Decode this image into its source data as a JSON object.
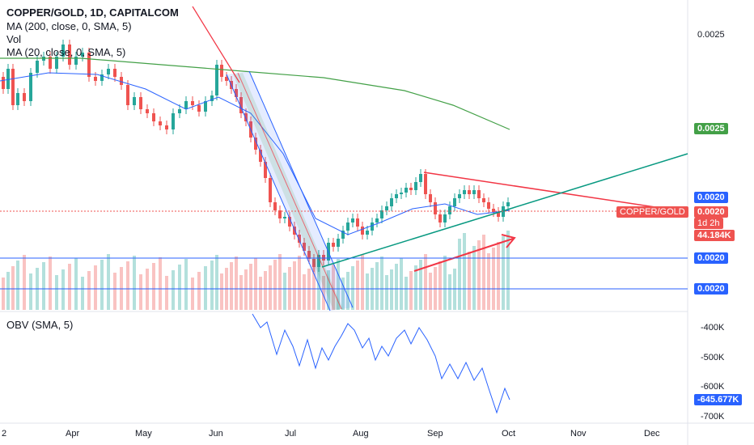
{
  "legend": {
    "title": "COPPER/GOLD, 1D, CAPITALCOM",
    "ma200": "MA (200, close, 0, SMA, 5)",
    "vol": "Vol",
    "ma20": "MA (20, close, 0, SMA, 5)",
    "obv": "OBV (SMA, 5)"
  },
  "price_axis": {
    "top_label": "0.0025",
    "ma200_tag": "0.0025",
    "ma20_tag": "0.0020",
    "symbol_tag": "COPPER/GOLD",
    "last_price": "0.0020",
    "countdown": "1d 2h",
    "volume_tag": "44.184K",
    "line1_tag": "0.0020",
    "line2_tag": "0.0020"
  },
  "obv_axis": {
    "ticks": [
      "-400K",
      "-500K",
      "-600K",
      "-700K"
    ],
    "current": "-645.677K"
  },
  "time_axis": {
    "months": [
      "2",
      "Apr",
      "May",
      "Jun",
      "Jul",
      "Aug",
      "Sep",
      "Oct",
      "Nov",
      "Dec"
    ]
  },
  "colors": {
    "up": "#26a69a",
    "down": "#ef5350",
    "ma200": "#43a047",
    "ma20": "#2962ff",
    "trend_green": "#089981",
    "trend_red": "#f23645",
    "hline": "#2962ff",
    "obv": "#2962ff"
  },
  "chart_data": {
    "type": "candlestick",
    "symbol": "COPPER/GOLD",
    "interval": "1D",
    "price_close_samples": [
      [
        "Mar",
        0.00245
      ],
      [
        "Apr",
        0.00244
      ],
      [
        "May",
        0.00232
      ],
      [
        "Jun",
        0.00241
      ],
      [
        "Jul",
        0.00192
      ],
      [
        "Aug",
        0.00208
      ],
      [
        "Sep",
        0.00203
      ],
      [
        "Oct",
        0.00204
      ]
    ],
    "ma200_last": 0.0025,
    "ma20_last": 0.002,
    "last_price": 0.002,
    "obv_last": -645677
  }
}
